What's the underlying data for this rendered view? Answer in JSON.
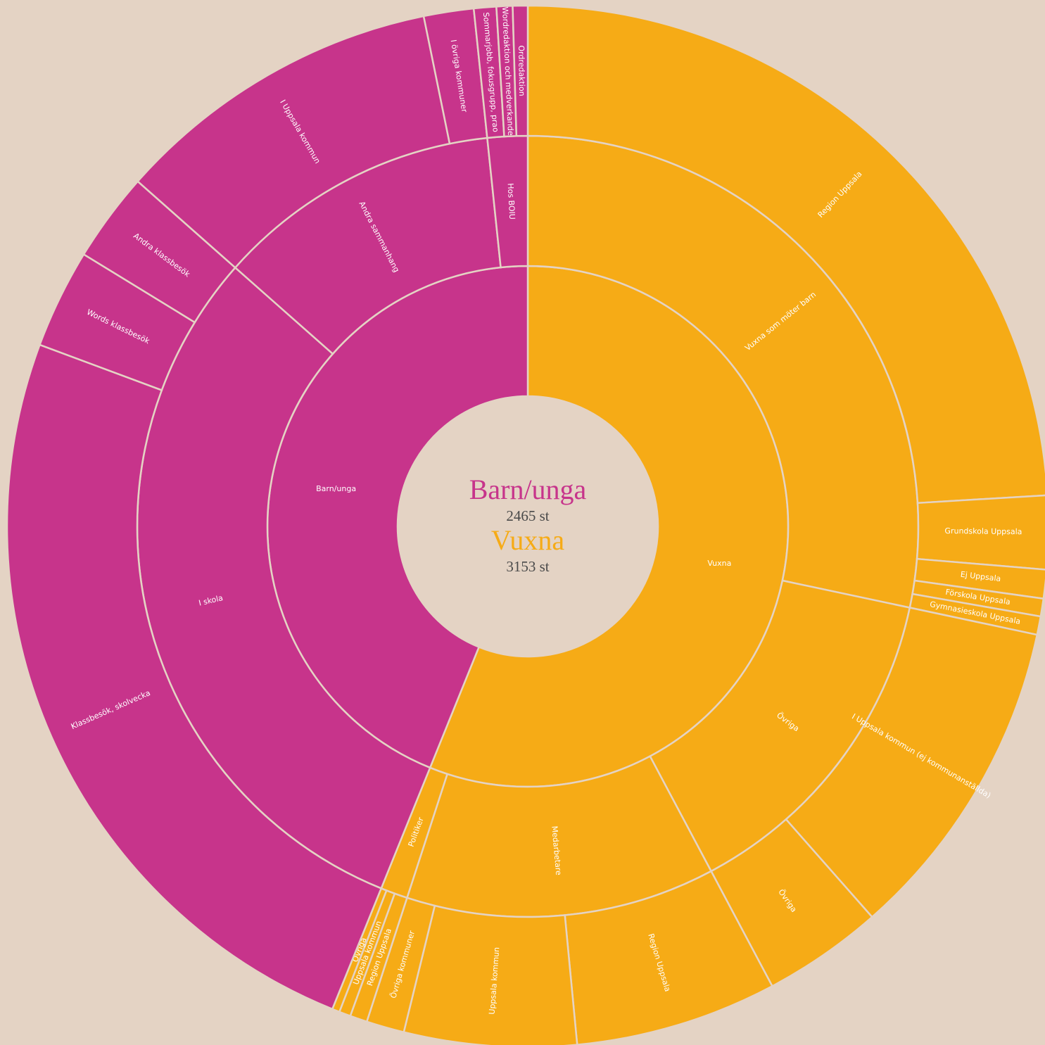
{
  "chart_data": {
    "type": "sunburst",
    "nodes": [
      {
        "name": "Vuxna",
        "value": 3153,
        "value_label": "3153 st",
        "color": "#f6ab16",
        "children": [
          {
            "name": "Vuxna som möter barn",
            "value": 1592,
            "children": [
              {
                "name": "Region Uppsala",
                "value": 1351
              },
              {
                "name": "Grundskola Uppsala",
                "value": 128
              },
              {
                "name": "Ej Uppsala",
                "value": 50
              },
              {
                "name": "Förskola Uppsala",
                "value": 31
              },
              {
                "name": "Gymnasieskola Uppsala",
                "value": 32
              }
            ]
          },
          {
            "name": "Övriga",
            "value": 780,
            "children": [
              {
                "name": "I Uppsala kommun (ej kommunanställda)",
                "value": 571
              },
              {
                "name": "Övriga",
                "value": 209
              }
            ]
          },
          {
            "name": "Medarbetare",
            "value": 718,
            "children": [
              {
                "name": "Region Uppsala",
                "value": 352
              },
              {
                "name": "Uppsala kommun",
                "value": 300
              },
              {
                "name": "Övriga kommuner",
                "value": 66
              }
            ]
          },
          {
            "name": "Politiker",
            "value": 63,
            "children": [
              {
                "name": "Region Uppsala",
                "value": 30
              },
              {
                "name": "Uppsala kommun",
                "value": 20
              },
              {
                "name": "Övriga",
                "value": 13
              }
            ]
          }
        ]
      },
      {
        "name": "Barn/unga",
        "value": 2465,
        "value_label": "2465 st",
        "color": "#c7348b",
        "children": [
          {
            "name": "I skola",
            "value": 1708,
            "children": [
              {
                "name": "Klassbesök, skolvecka",
                "value": 1379
              },
              {
                "name": "Words klassbesök",
                "value": 173
              },
              {
                "name": "Andra klassbesök",
                "value": 156
              }
            ]
          },
          {
            "name": "Andra sammanhang",
            "value": 664,
            "children": [
              {
                "name": "I Uppsala kommun",
                "value": 577
              },
              {
                "name": "I övriga kommuner",
                "value": 87
              }
            ]
          },
          {
            "name": "Hos BOIU",
            "value": 93,
            "children": [
              {
                "name": "Sommarjobb, fokusgrupp, prao",
                "value": 39
              },
              {
                "name": "Wordredaktion och medverkande",
                "value": 28
              },
              {
                "name": "Ordredaktion",
                "value": 26
              }
            ]
          }
        ]
      }
    ]
  }
}
